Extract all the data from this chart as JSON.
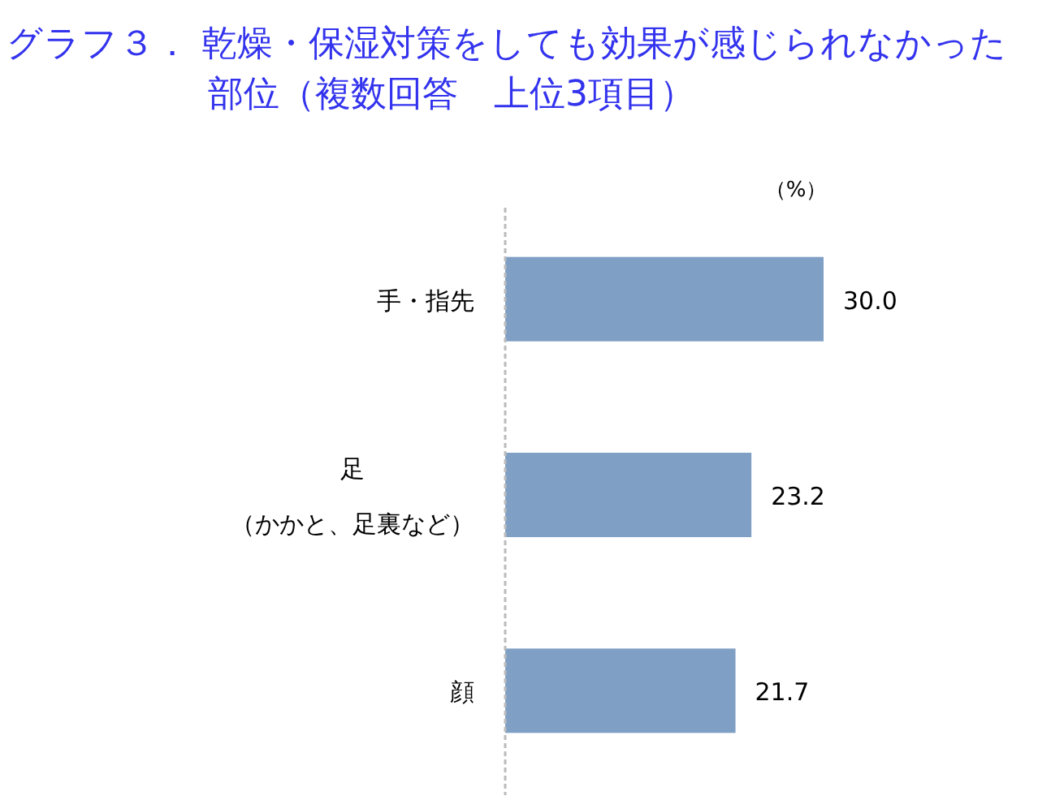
{
  "chart_data": {
    "type": "bar",
    "orientation": "horizontal",
    "title": "グラフ３．  乾燥・保湿対策をしても効果が感じられなかった部位（複数回答　上位3項目）",
    "categories": [
      "手・指先",
      "足（かかと、足裏など）",
      "顔"
    ],
    "values": [
      30.0,
      23.2,
      21.7
    ],
    "value_labels": [
      "30.0",
      "23.2",
      "21.7"
    ],
    "color": "#7f9fc4",
    "annotations": [
      "（%）"
    ]
  }
}
